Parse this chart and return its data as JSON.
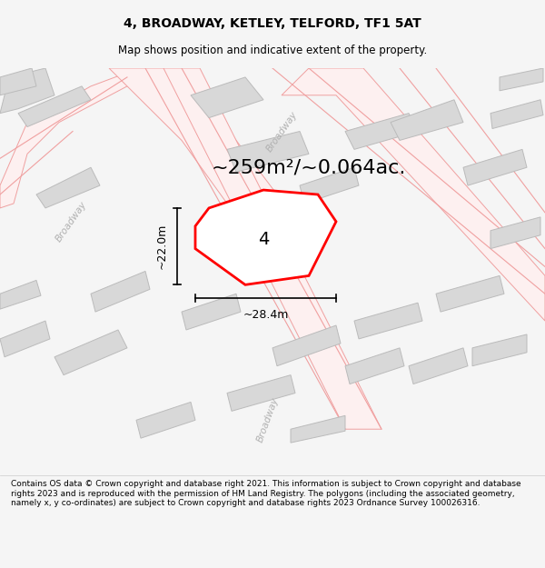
{
  "title": "4, BROADWAY, KETLEY, TELFORD, TF1 5AT",
  "subtitle": "Map shows position and indicative extent of the property.",
  "area_label": "~259m²/~0.064ac.",
  "property_number": "4",
  "dim_width": "~28.4m",
  "dim_height": "~22.0m",
  "footer": "Contains OS data © Crown copyright and database right 2021. This information is subject to Crown copyright and database rights 2023 and is reproduced with the permission of HM Land Registry. The polygons (including the associated geometry, namely x, y co-ordinates) are subject to Crown copyright and database rights 2023 Ordnance Survey 100026316.",
  "bg_color": "#f5f5f5",
  "map_bg": "#ffffff",
  "road_color_light": "#f0a0a0",
  "building_fill": "#d8d8d8",
  "building_edge": "#bbbbbb",
  "property_fill": "#ffffff",
  "property_edge": "#ff0000",
  "road_label_color": "#aaaaaa",
  "title_fontsize": 10,
  "subtitle_fontsize": 8.5,
  "area_fontsize": 16,
  "number_fontsize": 14,
  "dim_fontsize": 9,
  "footer_fontsize": 6.5
}
